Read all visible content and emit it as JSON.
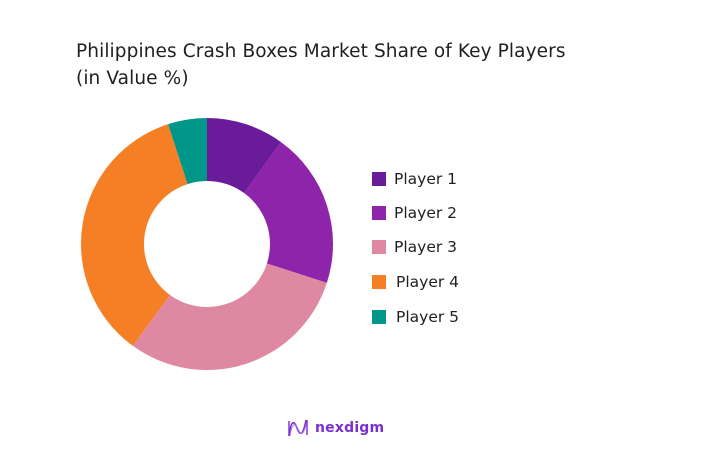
{
  "chart_data": {
    "type": "pie",
    "variant": "donut",
    "title": "Philippines Crash Boxes Market Share of Key Players",
    "subtitle": "(in Value %)",
    "categories": [
      "Player 1",
      "Player 2",
      "Player 3",
      "Player 4",
      "Player 5"
    ],
    "values": [
      10,
      20,
      30,
      35,
      5
    ],
    "unit": "%",
    "colors": [
      "#6a1b9a",
      "#8e24aa",
      "#df88a1",
      "#f57f25",
      "#00968a"
    ],
    "legend_position": "right",
    "start_angle_deg": 0,
    "direction": "clockwise"
  },
  "title": {
    "line1": "Philippines Crash Boxes Market Share of Key Players",
    "line2": "(in Value %)"
  },
  "legend": {
    "items": [
      {
        "label": "Player 1",
        "color": "#6a1b9a"
      },
      {
        "label": "Player 2",
        "color": "#8e24aa"
      },
      {
        "label": "Player 3",
        "color": "#df88a1"
      },
      {
        "label": "Player 4",
        "color": "#f57f25"
      },
      {
        "label": "Player 5",
        "color": "#00968a"
      }
    ]
  },
  "branding": {
    "logo_text": "nexdigm",
    "logo_icon": "nexdigm-wave-icon",
    "color": "#7b2fd0"
  }
}
